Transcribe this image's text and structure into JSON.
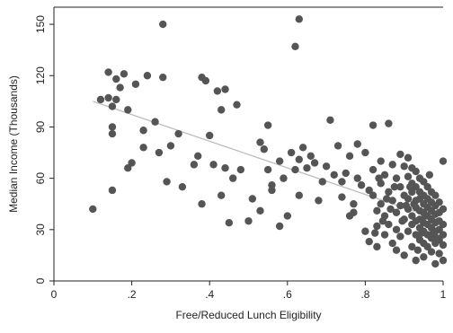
{
  "chart_data": {
    "type": "scatter",
    "title": "",
    "xlabel": "Free/Reduced Lunch Eligibility",
    "ylabel": "Median Income (Thousands)",
    "xlim": [
      0,
      1
    ],
    "ylim": [
      0,
      160
    ],
    "x_ticks": [
      0,
      0.2,
      0.4,
      0.6,
      0.8,
      1
    ],
    "x_tick_labels": [
      "0",
      ".2",
      ".4",
      ".6",
      ".8",
      "1"
    ],
    "y_ticks": [
      0,
      30,
      60,
      90,
      120,
      150
    ],
    "y_tick_labels": [
      "0",
      "30",
      "60",
      "90",
      "120",
      "150"
    ],
    "grid": false,
    "legend": "none",
    "colors": {
      "points": "#555555",
      "fit_line": "#bdbdbd",
      "axis": "#222222"
    },
    "fit_line": {
      "x": [
        0.1,
        1.0
      ],
      "y": [
        105,
        35
      ]
    },
    "points": [
      [
        0.1,
        42
      ],
      [
        0.12,
        106
      ],
      [
        0.14,
        107
      ],
      [
        0.14,
        122
      ],
      [
        0.15,
        53
      ],
      [
        0.15,
        102
      ],
      [
        0.15,
        90
      ],
      [
        0.15,
        86
      ],
      [
        0.16,
        118
      ],
      [
        0.16,
        106
      ],
      [
        0.17,
        113
      ],
      [
        0.18,
        121
      ],
      [
        0.19,
        100
      ],
      [
        0.19,
        66
      ],
      [
        0.2,
        69
      ],
      [
        0.21,
        115
      ],
      [
        0.23,
        88
      ],
      [
        0.23,
        78
      ],
      [
        0.24,
        120
      ],
      [
        0.26,
        93
      ],
      [
        0.27,
        75
      ],
      [
        0.28,
        150
      ],
      [
        0.28,
        119
      ],
      [
        0.29,
        58
      ],
      [
        0.3,
        79
      ],
      [
        0.32,
        86
      ],
      [
        0.33,
        55
      ],
      [
        0.36,
        68
      ],
      [
        0.37,
        73
      ],
      [
        0.38,
        45
      ],
      [
        0.38,
        119
      ],
      [
        0.39,
        117
      ],
      [
        0.4,
        85
      ],
      [
        0.41,
        68
      ],
      [
        0.42,
        111
      ],
      [
        0.43,
        50
      ],
      [
        0.43,
        100
      ],
      [
        0.44,
        66
      ],
      [
        0.44,
        112
      ],
      [
        0.45,
        34
      ],
      [
        0.46,
        60
      ],
      [
        0.47,
        103
      ],
      [
        0.48,
        65
      ],
      [
        0.5,
        35
      ],
      [
        0.51,
        48
      ],
      [
        0.53,
        41
      ],
      [
        0.53,
        81
      ],
      [
        0.54,
        77
      ],
      [
        0.55,
        91
      ],
      [
        0.55,
        65
      ],
      [
        0.56,
        53
      ],
      [
        0.56,
        56
      ],
      [
        0.58,
        32
      ],
      [
        0.58,
        70
      ],
      [
        0.59,
        60
      ],
      [
        0.6,
        38
      ],
      [
        0.61,
        75
      ],
      [
        0.62,
        137
      ],
      [
        0.62,
        65
      ],
      [
        0.63,
        153
      ],
      [
        0.63,
        50
      ],
      [
        0.63,
        71
      ],
      [
        0.64,
        78
      ],
      [
        0.65,
        66
      ],
      [
        0.66,
        73
      ],
      [
        0.67,
        69
      ],
      [
        0.68,
        47
      ],
      [
        0.69,
        58
      ],
      [
        0.7,
        67
      ],
      [
        0.71,
        94
      ],
      [
        0.72,
        62
      ],
      [
        0.73,
        79
      ],
      [
        0.74,
        58
      ],
      [
        0.74,
        49
      ],
      [
        0.75,
        63
      ],
      [
        0.76,
        73
      ],
      [
        0.76,
        38
      ],
      [
        0.77,
        45
      ],
      [
        0.77,
        40
      ],
      [
        0.78,
        80
      ],
      [
        0.78,
        60
      ],
      [
        0.79,
        56
      ],
      [
        0.8,
        75
      ],
      [
        0.8,
        29
      ],
      [
        0.81,
        53
      ],
      [
        0.81,
        23
      ],
      [
        0.82,
        91
      ],
      [
        0.82,
        65
      ],
      [
        0.82,
        50
      ],
      [
        0.83,
        41
      ],
      [
        0.83,
        32
      ],
      [
        0.83,
        20
      ],
      [
        0.84,
        70
      ],
      [
        0.84,
        57
      ],
      [
        0.84,
        45
      ],
      [
        0.85,
        62
      ],
      [
        0.85,
        38
      ],
      [
        0.85,
        27
      ],
      [
        0.86,
        92
      ],
      [
        0.86,
        52
      ],
      [
        0.86,
        33
      ],
      [
        0.87,
        68
      ],
      [
        0.87,
        47
      ],
      [
        0.87,
        22
      ],
      [
        0.88,
        60
      ],
      [
        0.88,
        40
      ],
      [
        0.88,
        30
      ],
      [
        0.88,
        18
      ],
      [
        0.89,
        74
      ],
      [
        0.89,
        55
      ],
      [
        0.89,
        44
      ],
      [
        0.89,
        26
      ],
      [
        0.9,
        67
      ],
      [
        0.9,
        50
      ],
      [
        0.9,
        36
      ],
      [
        0.9,
        15
      ],
      [
        0.91,
        72
      ],
      [
        0.91,
        61
      ],
      [
        0.91,
        48
      ],
      [
        0.91,
        42
      ],
      [
        0.91,
        29
      ],
      [
        0.92,
        66
      ],
      [
        0.92,
        57
      ],
      [
        0.92,
        52
      ],
      [
        0.92,
        38
      ],
      [
        0.92,
        33
      ],
      [
        0.92,
        20
      ],
      [
        0.93,
        64
      ],
      [
        0.93,
        55
      ],
      [
        0.93,
        47
      ],
      [
        0.93,
        43
      ],
      [
        0.93,
        35
      ],
      [
        0.93,
        27
      ],
      [
        0.93,
        12
      ],
      [
        0.94,
        60
      ],
      [
        0.94,
        52
      ],
      [
        0.94,
        48
      ],
      [
        0.94,
        41
      ],
      [
        0.94,
        36
      ],
      [
        0.94,
        31
      ],
      [
        0.94,
        24
      ],
      [
        0.95,
        58
      ],
      [
        0.95,
        50
      ],
      [
        0.95,
        45
      ],
      [
        0.95,
        40
      ],
      [
        0.95,
        34
      ],
      [
        0.95,
        29
      ],
      [
        0.95,
        22
      ],
      [
        0.95,
        14
      ],
      [
        0.96,
        55
      ],
      [
        0.96,
        48
      ],
      [
        0.96,
        43
      ],
      [
        0.96,
        38
      ],
      [
        0.96,
        33
      ],
      [
        0.96,
        27
      ],
      [
        0.96,
        20
      ],
      [
        0.97,
        52
      ],
      [
        0.97,
        46
      ],
      [
        0.97,
        41
      ],
      [
        0.97,
        36
      ],
      [
        0.97,
        31
      ],
      [
        0.97,
        25
      ],
      [
        0.97,
        17
      ],
      [
        0.98,
        50
      ],
      [
        0.98,
        44
      ],
      [
        0.98,
        39
      ],
      [
        0.98,
        34
      ],
      [
        0.98,
        29
      ],
      [
        0.98,
        22
      ],
      [
        0.98,
        10
      ],
      [
        0.99,
        46
      ],
      [
        0.99,
        40
      ],
      [
        0.99,
        35
      ],
      [
        0.99,
        30
      ],
      [
        0.99,
        24
      ],
      [
        0.99,
        16
      ],
      [
        1.0,
        70
      ],
      [
        1.0,
        42
      ],
      [
        1.0,
        33
      ],
      [
        1.0,
        27
      ],
      [
        1.0,
        21
      ],
      [
        1.0,
        12
      ],
      [
        0.965,
        62
      ],
      [
        0.955,
        38
      ],
      [
        0.945,
        28
      ],
      [
        0.975,
        28
      ],
      [
        0.985,
        25
      ],
      [
        0.935,
        18
      ],
      [
        0.925,
        45
      ],
      [
        0.915,
        55
      ],
      [
        0.905,
        44
      ],
      [
        0.895,
        35
      ],
      [
        0.875,
        55
      ],
      [
        0.865,
        42
      ],
      [
        0.855,
        48
      ],
      [
        0.845,
        35
      ],
      [
        0.835,
        60
      ],
      [
        0.825,
        28
      ]
    ]
  }
}
